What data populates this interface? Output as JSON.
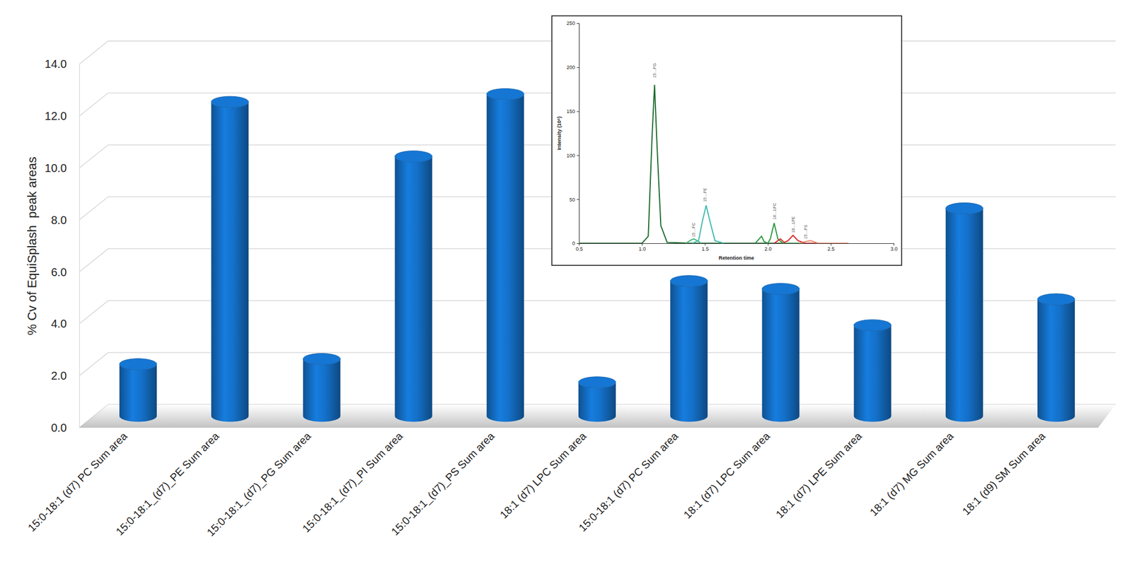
{
  "chart_data": [
    {
      "type": "bar",
      "y_label": "% Cv of EquiSplash  peak areas",
      "categories": [
        "15:0-18:1 (d7) PC Sum area",
        "15:0-18:1_(d7)_PE Sum area",
        "15:0-18:1_(d7)_PG Sum area",
        "15:0-18:1_(d7)_PI Sum area",
        "15:0-18:1_(d7)_PS Sum area",
        "18:1 (d7) LPC Sum area",
        "15:0-18:1 (d7) PC Sum area",
        "18:1 (d7) LPC Sum area",
        "18:1 (d7) LPE Sum area",
        "18:1 (d7) MG Sum area",
        "18:1 (d9) SM Sum area"
      ],
      "values": [
        2.0,
        12.1,
        2.2,
        10.0,
        12.4,
        1.3,
        5.2,
        4.9,
        3.5,
        8.0,
        4.5
      ],
      "color": "#1470c8",
      "ylim": [
        0,
        14
      ],
      "yticks": [
        {
          "value": 0,
          "label": "0.0"
        },
        {
          "value": 2,
          "label": "2.0"
        },
        {
          "value": 4,
          "label": "4.0"
        },
        {
          "value": 6,
          "label": "6.0"
        },
        {
          "value": 8,
          "label": "8.0"
        },
        {
          "value": 10,
          "label": "10.0"
        },
        {
          "value": 12,
          "label": "12.0"
        },
        {
          "value": 14,
          "label": "14.0"
        }
      ],
      "grid": true
    },
    {
      "type": "line",
      "x_label": "Retention time",
      "y_label": "Intensity (10⁶)",
      "xlim": [
        0.5,
        3.0
      ],
      "xticks": [
        {
          "value": 0.5,
          "label": "0.5"
        },
        {
          "value": 1,
          "label": "1.0"
        },
        {
          "value": 1.5,
          "label": "1.5"
        },
        {
          "value": 2,
          "label": "2.0"
        },
        {
          "value": 2.5,
          "label": "2.5"
        },
        {
          "value": 3,
          "label": "3.0"
        }
      ],
      "ylim": [
        0,
        250
      ],
      "yticks": [
        0,
        50,
        100,
        150,
        200,
        250
      ],
      "series": [
        {
          "color": "#1f6e2f",
          "x": [
            0.5,
            1.0,
            1.05,
            1.08,
            1.1,
            1.12,
            1.15,
            1.2,
            1.4,
            2.6
          ],
          "values": [
            0,
            0,
            8,
            120,
            180,
            110,
            20,
            1,
            0,
            0
          ]
        },
        {
          "color": "#45b97c",
          "x": [
            1.35,
            1.38,
            1.41,
            1.44,
            1.47
          ],
          "values": [
            0,
            3,
            5,
            3,
            0
          ]
        },
        {
          "color": "#3fbcb0",
          "x": [
            1.4,
            1.45,
            1.48,
            1.51,
            1.54,
            1.58,
            1.65
          ],
          "values": [
            0,
            3,
            25,
            43,
            25,
            3,
            0
          ]
        },
        {
          "color": "#2e9a40",
          "x": [
            1.9,
            1.95,
            1.97,
            2.0,
            2.02,
            2.05,
            2.08,
            2.12,
            2.6
          ],
          "values": [
            0,
            8,
            2,
            0,
            5,
            23,
            5,
            0,
            0
          ]
        },
        {
          "color": "#d92b2b",
          "x": [
            2.05,
            2.08,
            2.1,
            2.13,
            2.16,
            2.2,
            2.24,
            2.3,
            2.62
          ],
          "values": [
            0,
            3,
            5,
            1,
            3,
            9,
            3,
            0,
            0
          ]
        },
        {
          "color": "#e58a6a",
          "x": [
            2.25,
            2.3,
            2.34,
            2.4,
            2.64
          ],
          "values": [
            0,
            2,
            3,
            0,
            0
          ]
        }
      ],
      "annotations": [
        {
          "text": "15:...PG",
          "x": 1.1,
          "y": 188
        },
        {
          "text": "15:...PC",
          "x": 1.41,
          "y": 7
        },
        {
          "text": "15:...PE",
          "x": 1.5,
          "y": 47
        },
        {
          "text": "18:...LPC",
          "x": 2.05,
          "y": 27
        },
        {
          "text": "18:...LPE",
          "x": 2.2,
          "y": 12
        },
        {
          "text": "15:...PS",
          "x": 2.3,
          "y": 5
        }
      ]
    }
  ]
}
